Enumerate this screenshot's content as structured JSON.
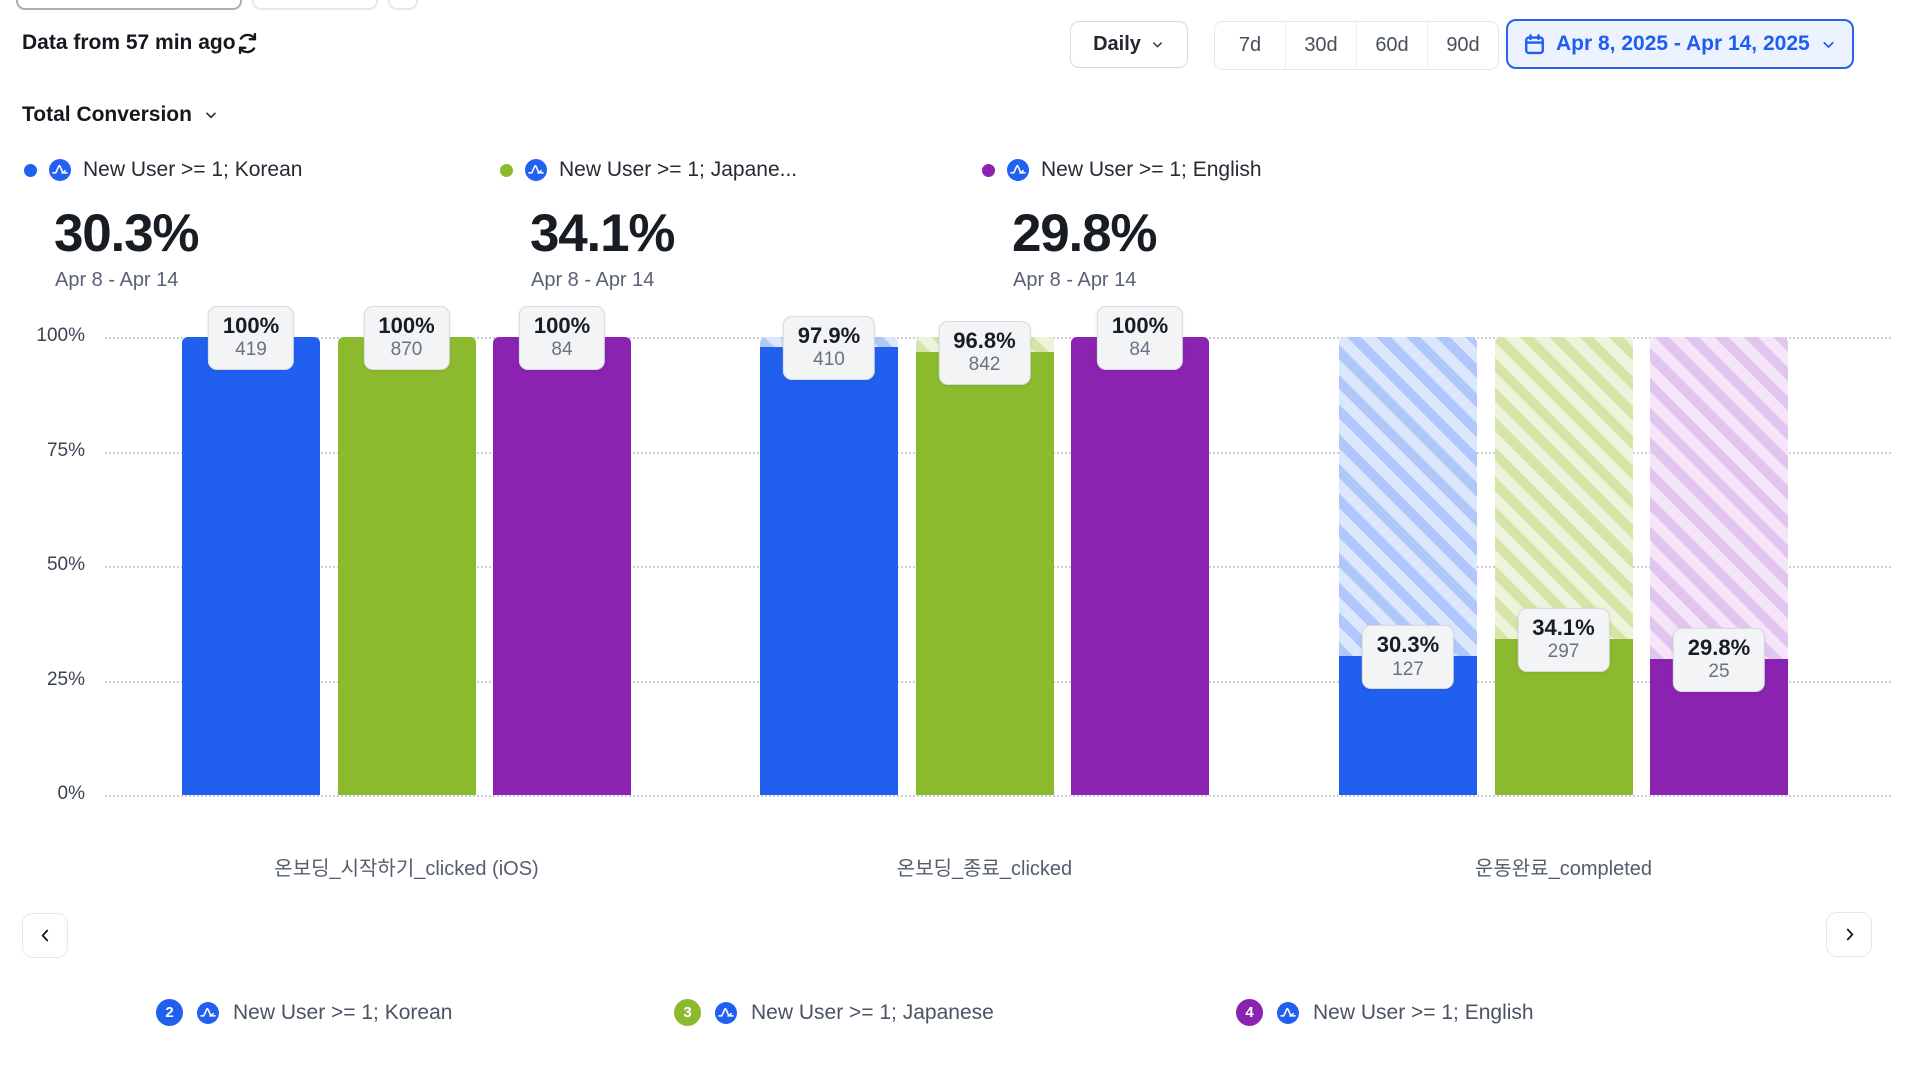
{
  "header": {
    "data_freshness": "Data from 57 min ago",
    "granularity_label": "Daily",
    "range_buttons": [
      "7d",
      "30d",
      "60d",
      "90d"
    ],
    "date_range_label": "Apr 8, 2025 - Apr 14, 2025",
    "accent_color": "#1e5df2"
  },
  "metric_selector": {
    "label": "Total Conversion"
  },
  "series_summary": [
    {
      "name": "New User >= 1; Korean",
      "color": "#2160ee",
      "conversion": "30.3%",
      "range": "Apr 8 - Apr 14"
    },
    {
      "name": "New User >= 1; Japane...",
      "color": "#8cba2e",
      "conversion": "34.1%",
      "range": "Apr 8 - Apr 14"
    },
    {
      "name": "New User >= 1; English",
      "color": "#8b23b0",
      "conversion": "29.8%",
      "range": "Apr 8 - Apr 14"
    }
  ],
  "chart_data": {
    "type": "bar",
    "subtype": "funnel-conversion",
    "categories": [
      "온보딩_시작하기_clicked (iOS)",
      "온보딩_종료_clicked",
      "운동완료_completed"
    ],
    "series": [
      {
        "name": "New User >= 1; Korean",
        "color": "#2160ee",
        "hatch_bg": "#dce6fc",
        "hatch_stripe": "#b0c8f9",
        "values_pct": [
          100,
          97.9,
          30.3
        ],
        "pct_labels": [
          "100%",
          "97.9%",
          "30.3%"
        ],
        "counts": [
          419,
          410,
          127
        ]
      },
      {
        "name": "New User >= 1; Japanese",
        "color": "#8cba2e",
        "hatch_bg": "#eef3dc",
        "hatch_stripe": "#d5e5a8",
        "values_pct": [
          100,
          96.8,
          34.1
        ],
        "pct_labels": [
          "100%",
          "96.8%",
          "34.1%"
        ],
        "counts": [
          870,
          842,
          297
        ]
      },
      {
        "name": "New User >= 1; English",
        "color": "#8b23b0",
        "hatch_bg": "#f4e6f8",
        "hatch_stripe": "#e2c5ef",
        "values_pct": [
          100,
          100,
          29.8
        ],
        "pct_labels": [
          "100%",
          "100%",
          "29.8%"
        ],
        "counts": [
          84,
          84,
          25
        ]
      }
    ],
    "yticks": [
      "100%",
      "75%",
      "50%",
      "25%",
      "0%"
    ],
    "ylim": [
      0,
      100
    ],
    "grid": "dotted horizontal",
    "legend_position": "bottom"
  },
  "legend": [
    {
      "number": "2",
      "color": "#2160ee",
      "name": "New User >= 1; Korean"
    },
    {
      "number": "3",
      "color": "#8cba2e",
      "name": "New User >= 1; Japanese"
    },
    {
      "number": "4",
      "color": "#8b23b0",
      "name": "New User >= 1; English"
    }
  ]
}
